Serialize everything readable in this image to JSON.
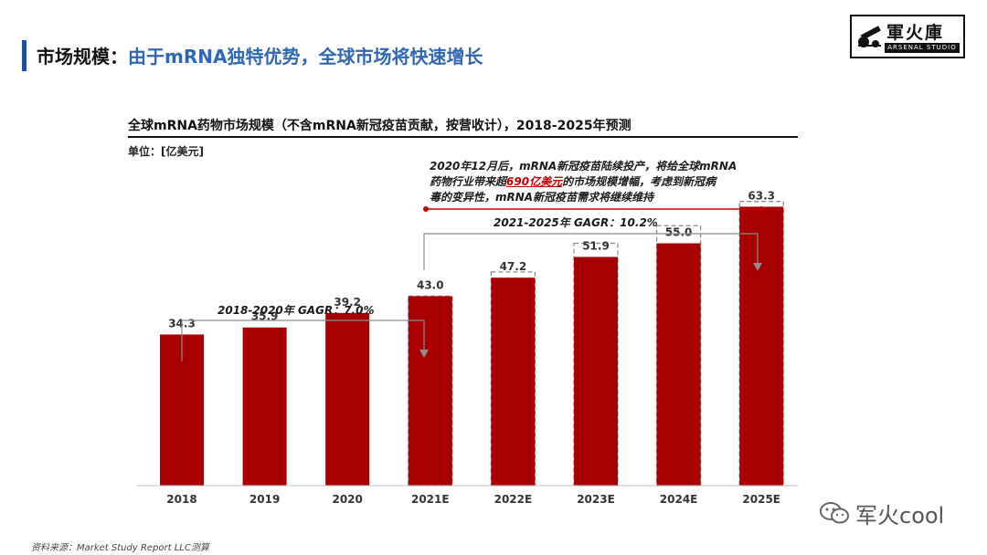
{
  "header": {
    "title_prefix": "市场规模：",
    "title_main": "由于mRNA独特优势，全球市场将快速增长"
  },
  "logo": {
    "cn": "軍火庫",
    "en": "ARSENAL STUDIO"
  },
  "chart": {
    "title": "全球mRNA药物市场规模（不含mRNA新冠疫苗贡献，按营收计），2018-2025年预测",
    "unit_label": "单位：[亿美元]",
    "annotation_lines": [
      {
        "before": "2020年12月后，mRNA新冠疫苗陆续投产，将给全球mRNA",
        "highlight": "",
        "after": ""
      },
      {
        "before": "药物行业带来超",
        "highlight": "690亿美元",
        "after": "的市场规模增幅，考虑到新冠病"
      },
      {
        "before": "毒的变异性，mRNA新冠疫苗需求将继续维持",
        "highlight": "",
        "after": ""
      }
    ],
    "cagr_2018_2020": "2018-2020年   GAGR：7.0%",
    "cagr_2021_2025": "2021-2025年      GAGR：10.2%"
  },
  "chart_data": {
    "type": "bar",
    "categories": [
      "2018",
      "2019",
      "2020",
      "2021E",
      "2022E",
      "2023E",
      "2024E",
      "2025E"
    ],
    "values": [
      34.3,
      35.9,
      39.2,
      43.0,
      47.2,
      51.9,
      55.0,
      63.3
    ],
    "value_labels": [
      "34.3",
      "35.9",
      "39.2",
      "43.0",
      "47.2",
      "51.9",
      "55.0",
      "63.3"
    ],
    "dashed_totals": [
      null,
      null,
      null,
      43.0,
      48.5,
      55.0,
      59.0,
      64.5
    ],
    "ylim": [
      0,
      75
    ],
    "grid": false,
    "colors": {
      "bar": "#a80000",
      "dashed": "#8c8c8c",
      "arrow": "#8c8c8c",
      "baseline": "#bfbfbf",
      "accent_line": "#c00000"
    }
  },
  "footer": {
    "source": "资料来源：Market Study Report LLC测算",
    "watermark": "军火cool"
  }
}
